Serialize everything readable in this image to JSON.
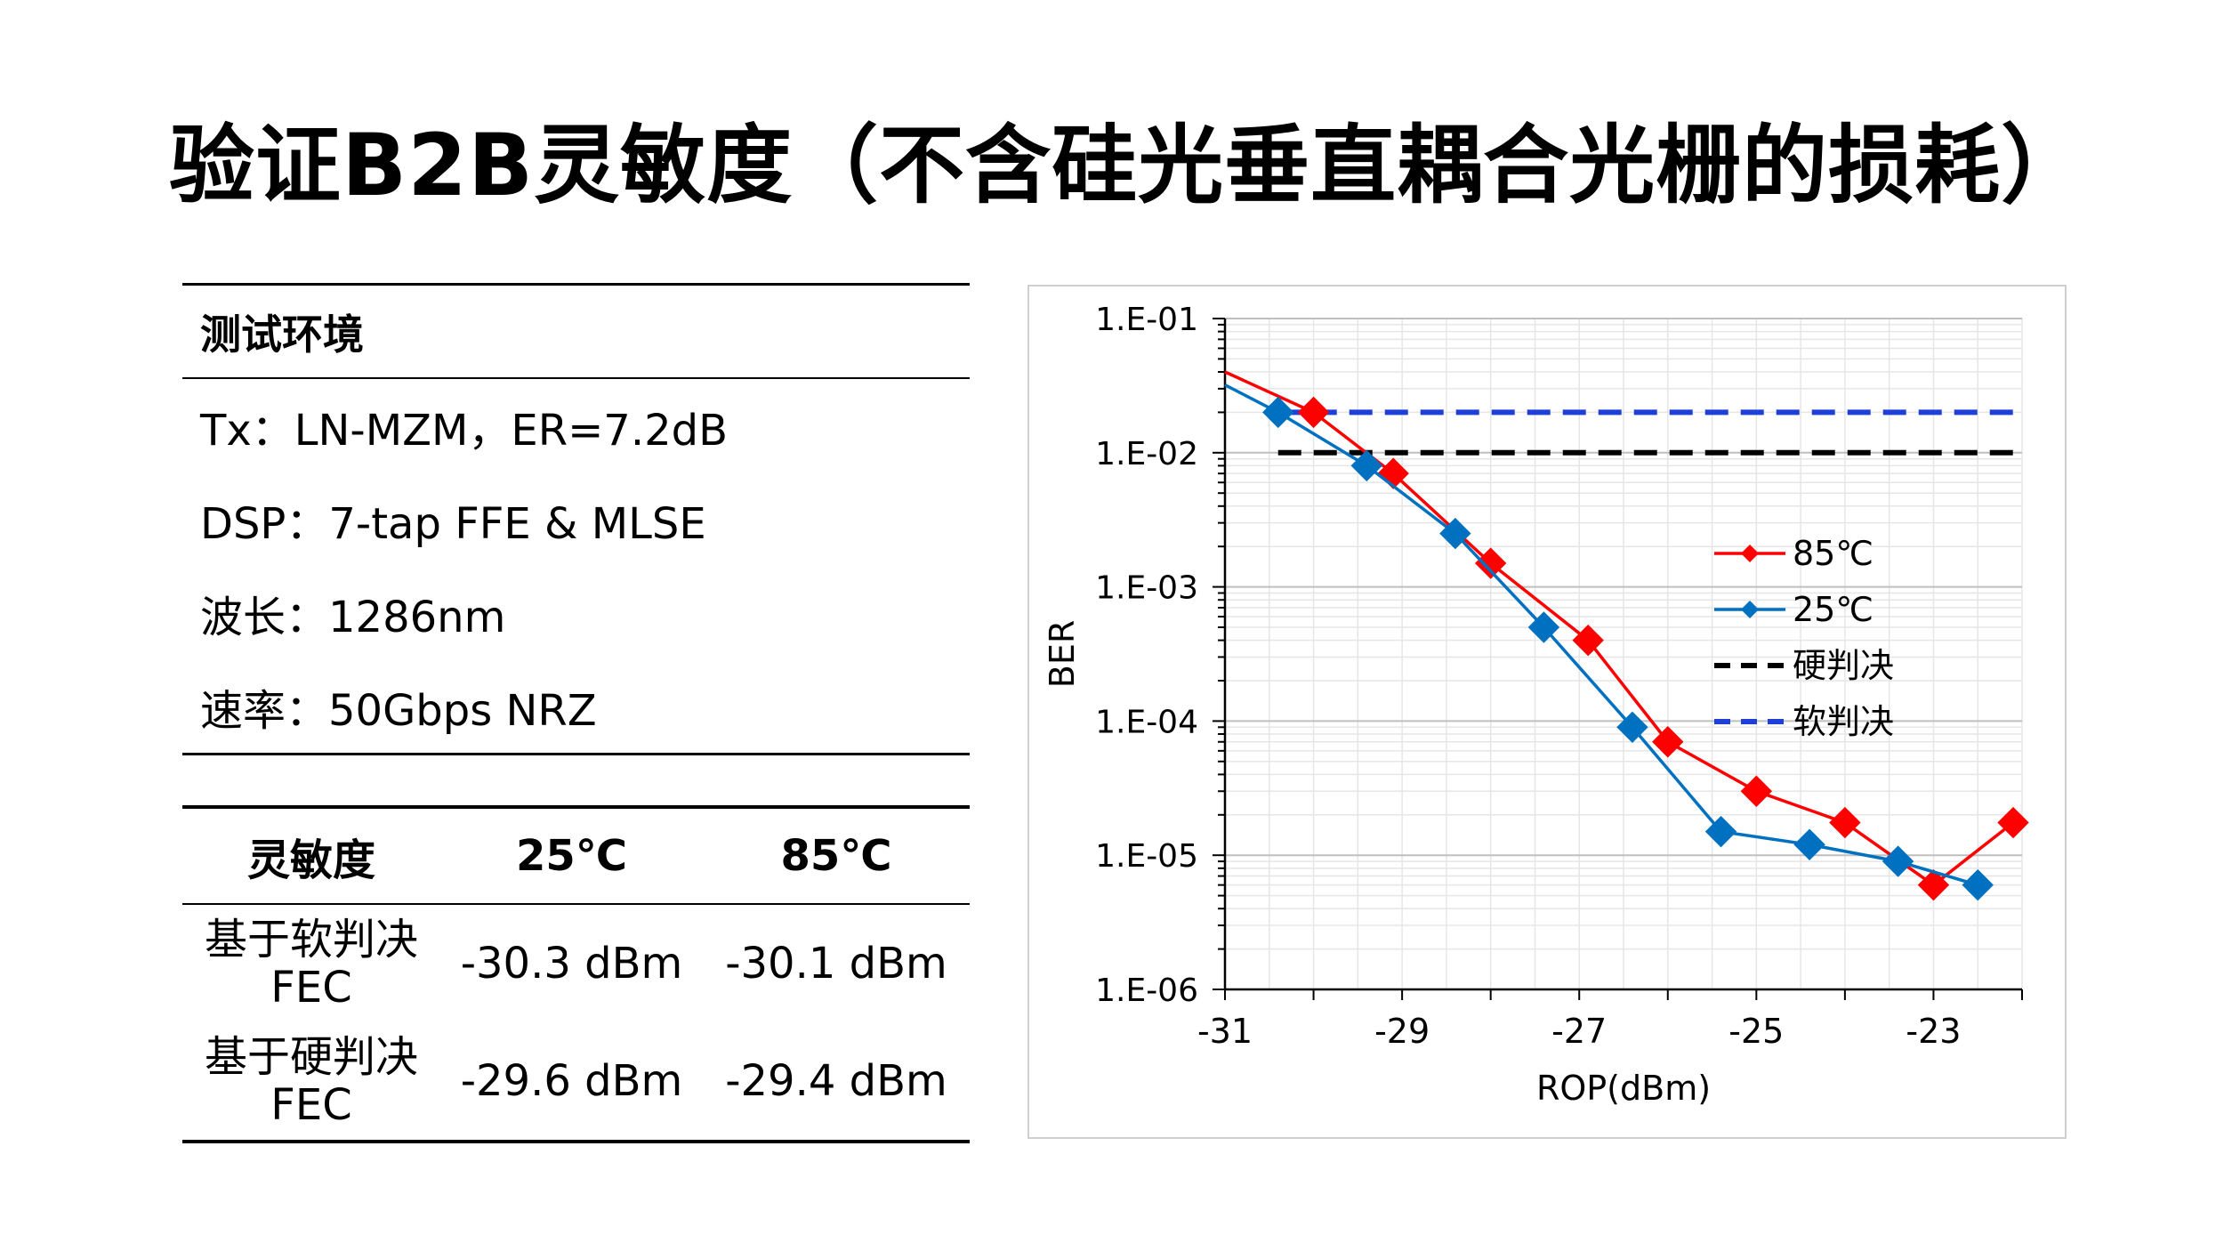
{
  "page": {
    "title": "验证B2B灵敏度（不含硅光垂直耦合光栅的损耗）"
  },
  "environment": {
    "heading": "测试环境",
    "lines": [
      "Tx：LN-MZM，ER=7.2dB",
      "DSP：7-tap FFE & MLSE",
      "波长：1286nm",
      "速率：50Gbps NRZ"
    ]
  },
  "sensitivity_table": {
    "headers": [
      "灵敏度",
      "25℃",
      "85℃"
    ],
    "rows": [
      {
        "label_1": "基于软判决",
        "label_2": "FEC",
        "v25": "-30.3 dBm",
        "v85": "-30.1 dBm"
      },
      {
        "label_1": "基于硬判决",
        "label_2": "FEC",
        "v25": "-29.6 dBm",
        "v85": "-29.4 dBm"
      }
    ]
  },
  "chart_data": {
    "type": "scatter",
    "xlabel": "ROP(dBm)",
    "ylabel": "BER",
    "xlim": [
      -31,
      -22
    ],
    "x_ticks": [
      "-31",
      "-29",
      "-27",
      "-25",
      "-23"
    ],
    "x_tick_values": [
      -31,
      -29,
      -27,
      -25,
      -23
    ],
    "y_scale": "log",
    "ylim": [
      1e-06,
      0.1
    ],
    "y_ticks": [
      "1.E-01",
      "1.E-02",
      "1.E-03",
      "1.E-04",
      "1.E-05",
      "1.E-06"
    ],
    "y_tick_values": [
      0.1,
      0.01,
      0.001,
      0.0001,
      1e-05,
      1e-06
    ],
    "grid": true,
    "legend_position": "right-middle",
    "series": [
      {
        "name": "85℃",
        "color": "#ff0000",
        "marker": "diamond",
        "x": [
          -30.0,
          -29.1,
          -28.0,
          -26.9,
          -26.0,
          -25.0,
          -24.0,
          -23.0,
          -22.1
        ],
        "y": [
          0.02,
          0.007,
          0.0015,
          0.0004,
          7e-05,
          3e-05,
          1.75e-05,
          6e-06,
          1.75e-05
        ]
      },
      {
        "name": "25℃",
        "color": "#0070c0",
        "marker": "diamond",
        "x": [
          -30.4,
          -29.4,
          -28.4,
          -27.4,
          -26.4,
          -25.4,
          -24.4,
          -23.4,
          -22.5
        ],
        "y": [
          0.02,
          0.008,
          0.0025,
          0.0005,
          9e-05,
          1.5e-05,
          1.2e-05,
          9e-06,
          6e-06
        ]
      },
      {
        "name": "硬判决",
        "color": "#000000",
        "style": "dashed",
        "x": [
          -30.4,
          -22.0
        ],
        "y": [
          0.01,
          0.01
        ]
      },
      {
        "name": "软判决",
        "color": "#1f3fd9",
        "style": "dashed",
        "x": [
          -30.4,
          -22.0
        ],
        "y": [
          0.02,
          0.02
        ]
      }
    ],
    "line_start": {
      "85℃": {
        "x": -31,
        "y": 0.04
      },
      "25℃": {
        "x": -31,
        "y": 0.032
      }
    }
  }
}
